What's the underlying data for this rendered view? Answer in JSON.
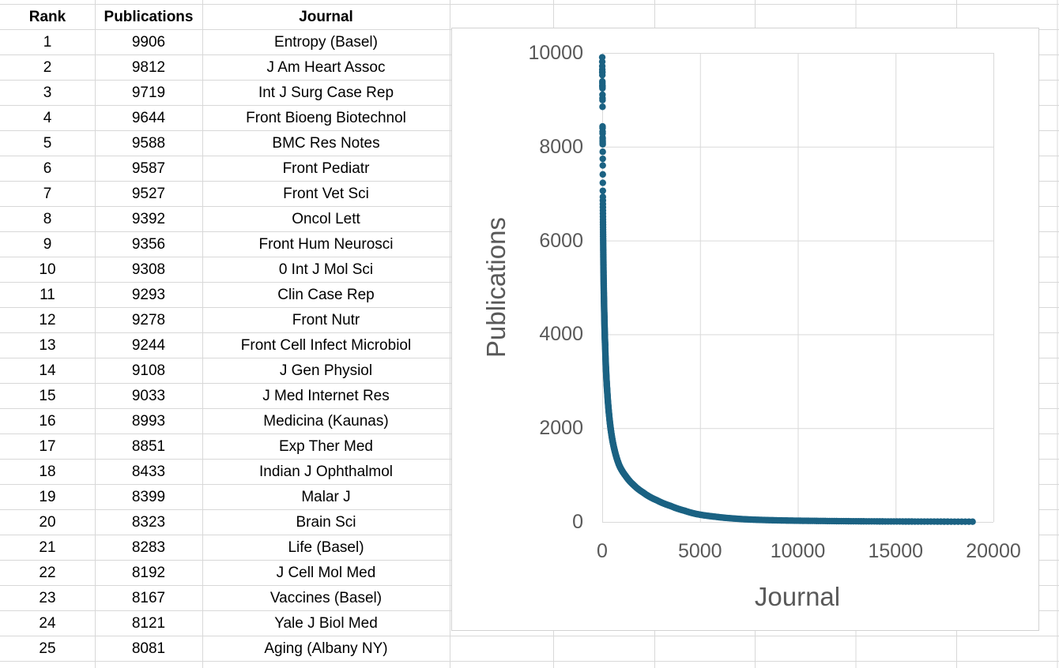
{
  "table": {
    "headers": [
      "Rank",
      "Publications",
      "Journal"
    ],
    "rows": [
      [
        1,
        9906,
        "Entropy (Basel)"
      ],
      [
        2,
        9812,
        "J Am Heart Assoc"
      ],
      [
        3,
        9719,
        "Int J Surg Case Rep"
      ],
      [
        4,
        9644,
        "Front Bioeng Biotechnol"
      ],
      [
        5,
        9588,
        "BMC Res Notes"
      ],
      [
        6,
        9587,
        "Front Pediatr"
      ],
      [
        7,
        9527,
        "Front Vet Sci"
      ],
      [
        8,
        9392,
        "Oncol Lett"
      ],
      [
        9,
        9356,
        "Front Hum Neurosci"
      ],
      [
        10,
        9308,
        "0 Int J Mol Sci"
      ],
      [
        11,
        9293,
        "Clin Case Rep"
      ],
      [
        12,
        9278,
        "Front Nutr"
      ],
      [
        13,
        9244,
        "Front Cell Infect Microbiol"
      ],
      [
        14,
        9108,
        "J Gen Physiol"
      ],
      [
        15,
        9033,
        "J Med Internet Res"
      ],
      [
        16,
        8993,
        "Medicina (Kaunas)"
      ],
      [
        17,
        8851,
        "Exp Ther Med"
      ],
      [
        18,
        8433,
        "Indian J Ophthalmol"
      ],
      [
        19,
        8399,
        "Malar J"
      ],
      [
        20,
        8323,
        "Brain Sci"
      ],
      [
        21,
        8283,
        "Life (Basel)"
      ],
      [
        22,
        8192,
        "J Cell Mol Med"
      ],
      [
        23,
        8167,
        "Vaccines (Basel)"
      ],
      [
        24,
        8121,
        "Yale J Biol Med"
      ],
      [
        25,
        8081,
        "Aging (Albany NY)"
      ]
    ]
  },
  "chart_data": {
    "type": "scatter",
    "title": "",
    "xlabel": "Journal",
    "ylabel": "Publications",
    "xlim": [
      0,
      20000
    ],
    "ylim": [
      0,
      10000
    ],
    "x_ticks": [
      0,
      5000,
      10000,
      15000,
      20000
    ],
    "y_ticks": [
      0,
      2000,
      4000,
      6000,
      8000,
      10000
    ],
    "grid": true,
    "legend": false,
    "marker_color": "#1B6283",
    "gridline_color": "#d9d9d9",
    "axis_text_color": "#595959",
    "description": "Rank-frequency distribution: publications per journal vs journal rank; roughly 19100 journals, steep long-tail decay from 9906 at rank 1 to near 0 at rank 19100",
    "points_top25": [
      [
        1,
        9906
      ],
      [
        2,
        9812
      ],
      [
        3,
        9719
      ],
      [
        4,
        9644
      ],
      [
        5,
        9588
      ],
      [
        6,
        9587
      ],
      [
        7,
        9527
      ],
      [
        8,
        9392
      ],
      [
        9,
        9356
      ],
      [
        10,
        9308
      ],
      [
        11,
        9293
      ],
      [
        12,
        9278
      ],
      [
        13,
        9244
      ],
      [
        14,
        9108
      ],
      [
        15,
        9033
      ],
      [
        16,
        8993
      ],
      [
        17,
        8851
      ],
      [
        18,
        8433
      ],
      [
        19,
        8399
      ],
      [
        20,
        8323
      ],
      [
        21,
        8283
      ],
      [
        22,
        8192
      ],
      [
        23,
        8167
      ],
      [
        24,
        8121
      ],
      [
        25,
        8081
      ]
    ],
    "tail_anchors": [
      [
        26,
        8050
      ],
      [
        29,
        7600
      ],
      [
        32,
        7060
      ],
      [
        33,
        6930
      ],
      [
        40,
        6450
      ],
      [
        50,
        5950
      ],
      [
        65,
        5400
      ],
      [
        85,
        4850
      ],
      [
        110,
        4350
      ],
      [
        150,
        3750
      ],
      [
        200,
        3200
      ],
      [
        270,
        2700
      ],
      [
        360,
        2250
      ],
      [
        480,
        1850
      ],
      [
        650,
        1500
      ],
      [
        900,
        1180
      ],
      [
        1200,
        980
      ],
      [
        1600,
        790
      ],
      [
        2100,
        625
      ],
      [
        2800,
        460
      ],
      [
        3500,
        340
      ],
      [
        4200,
        240
      ],
      [
        4800,
        170
      ],
      [
        5800,
        110
      ],
      [
        6800,
        70
      ],
      [
        7500,
        52
      ],
      [
        8500,
        38
      ],
      [
        9500,
        29
      ],
      [
        11000,
        21
      ],
      [
        12500,
        15
      ],
      [
        14000,
        11
      ],
      [
        16000,
        8
      ],
      [
        18000,
        6
      ],
      [
        19100,
        5
      ]
    ]
  }
}
